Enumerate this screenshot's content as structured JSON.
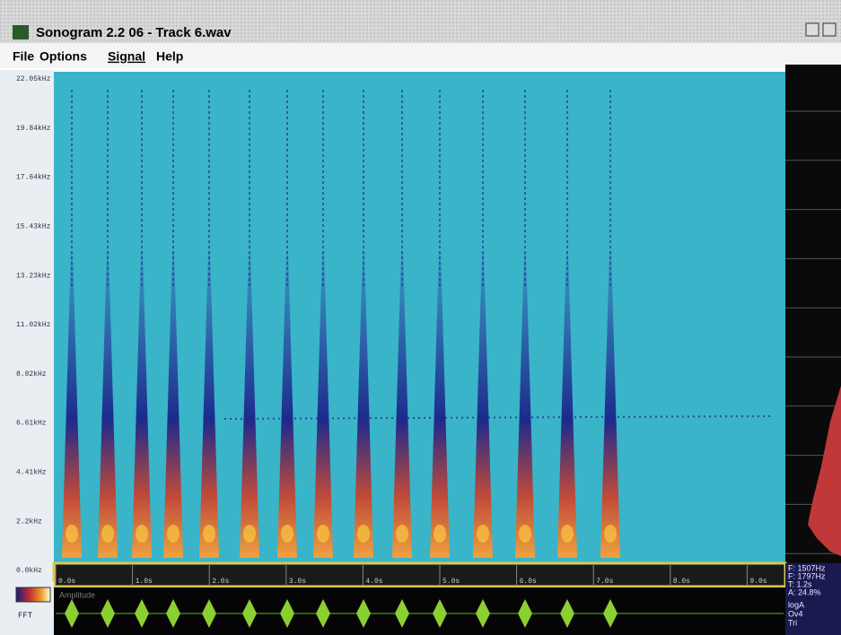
{
  "window": {
    "title": "Sonogram 2.2 06 - Track 6.wav"
  },
  "menu": [
    "File",
    "Options",
    "Signal",
    "Help"
  ],
  "frequency_axis": [
    "22.05kHz",
    "19.84kHz",
    "17.64kHz",
    "15.43kHz",
    "13.23kHz",
    "11.02kHz",
    "8.82kHz",
    "6.61kHz",
    "4.41kHz",
    "2.2kHz",
    "0.0kHz"
  ],
  "time_axis": [
    "0.0s",
    "1.0s",
    "2.0s",
    "3.0s",
    "4.0s",
    "5.0s",
    "6.0s",
    "7.0s",
    "8.0s",
    "9.0s"
  ],
  "readouts": [
    "F: 1507Hz",
    "F: 1797Hz",
    "T: 1.2s",
    "A: 24.8%"
  ],
  "settings": [
    "logA",
    "Ov4",
    "Tri"
  ],
  "waveform_label": "Amplitude",
  "transform_label": "FFT"
}
